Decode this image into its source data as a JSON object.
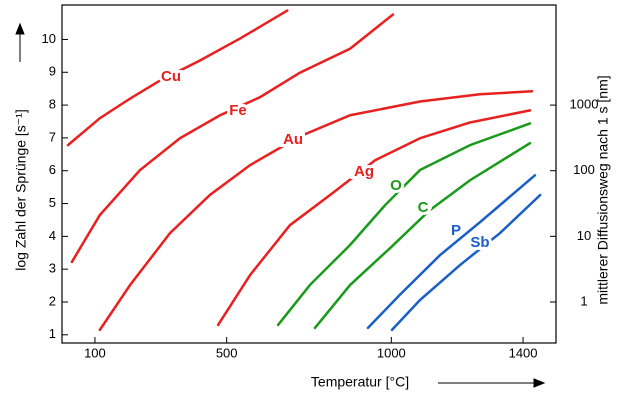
{
  "chart_data": {
    "type": "line",
    "xlabel": "Temperatur  [°C]",
    "ylabel": "log Zahl der Sprünge  [s⁻¹]",
    "y2label": "mittlerer Diffusionsweg nach 1 s  [nm]",
    "xlim": [
      0,
      1500
    ],
    "xticks": [
      100,
      500,
      1000,
      1400
    ],
    "ylim": [
      0.75,
      11.05
    ],
    "yticks": [
      1,
      2,
      3,
      4,
      5,
      6,
      7,
      8,
      9,
      10
    ],
    "y2lim": [
      0.237,
      33500
    ],
    "y2scale": "log",
    "y2ticks": [
      1,
      10,
      100,
      1000
    ],
    "series": [
      {
        "name": "Cu",
        "color": "#e82020",
        "x": [
          18,
          115,
          207,
          298,
          419,
          541,
          684
        ],
        "values": [
          6.78,
          7.6,
          8.2,
          8.75,
          9.36,
          10.03,
          10.88
        ]
      },
      {
        "name": "Fe",
        "color": "#e82020",
        "x": [
          30,
          115,
          237,
          358,
          480,
          601,
          723,
          875,
          1005
        ],
        "values": [
          3.22,
          4.65,
          6.02,
          6.99,
          7.69,
          8.24,
          8.99,
          9.72,
          10.76
        ]
      },
      {
        "name": "Au",
        "color": "#e82020",
        "x": [
          115,
          207,
          328,
          449,
          571,
          723,
          875,
          1087,
          1269,
          1427
        ],
        "values": [
          1.15,
          2.52,
          4.1,
          5.26,
          6.17,
          7.05,
          7.69,
          8.11,
          8.33,
          8.42
        ]
      },
      {
        "name": "Ag",
        "color": "#e82020",
        "x": [
          474,
          571,
          692,
          814,
          951,
          1087,
          1239,
          1421
        ],
        "values": [
          1.3,
          2.82,
          4.34,
          5.26,
          6.32,
          6.99,
          7.47,
          7.84
        ]
      },
      {
        "name": "O",
        "color": "#1a9a1a",
        "x": [
          656,
          753,
          875,
          981,
          1087,
          1239,
          1421
        ],
        "values": [
          1.3,
          2.52,
          3.74,
          4.95,
          6.02,
          6.78,
          7.44
        ]
      },
      {
        "name": "C",
        "color": "#1a9a1a",
        "x": [
          768,
          875,
          996,
          1117,
          1239,
          1421
        ],
        "values": [
          1.21,
          2.52,
          3.64,
          4.8,
          5.71,
          6.84
        ]
      },
      {
        "name": "P",
        "color": "#1a5fc8",
        "x": [
          929,
          1026,
          1148,
          1269,
          1436
        ],
        "values": [
          1.21,
          2.22,
          3.43,
          4.43,
          5.86
        ]
      },
      {
        "name": "Sb",
        "color": "#1a5fc8",
        "x": [
          1002,
          1087,
          1209,
          1330,
          1452
        ],
        "values": [
          1.15,
          2.06,
          3.13,
          4.1,
          5.26
        ]
      }
    ]
  }
}
